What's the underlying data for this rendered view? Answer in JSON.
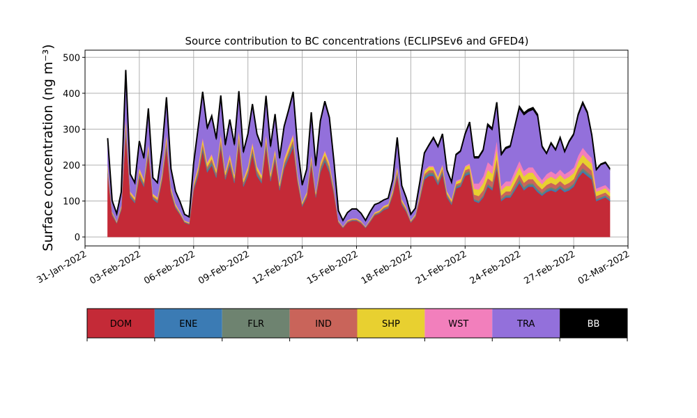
{
  "chart_data": {
    "type": "area",
    "stacked": true,
    "title": "Source contribution to BC concentrations (ECLIPSEv6 and GFED4)",
    "xlabel": "",
    "ylabel": "Surface concentration (ng m⁻³)",
    "ylim": [
      -25,
      520
    ],
    "yticks": [
      0,
      100,
      200,
      300,
      400,
      500
    ],
    "xlim": [
      "2022-01-31",
      "2022-03-02"
    ],
    "xticks": [
      "31-Jan-2022",
      "03-Feb-2022",
      "06-Feb-2022",
      "09-Feb-2022",
      "12-Feb-2022",
      "15-Feb-2022",
      "18-Feb-2022",
      "21-Feb-2022",
      "24-Feb-2022",
      "27-Feb-2022",
      "02-Mar-2022"
    ],
    "grid": true,
    "legend_position": "bottom colorbar",
    "x": [
      "2022-02-01T06",
      "2022-02-01T12",
      "2022-02-01T18",
      "2022-02-02T00",
      "2022-02-02T06",
      "2022-02-02T12",
      "2022-02-02T18",
      "2022-02-03T00",
      "2022-02-03T06",
      "2022-02-03T12",
      "2022-02-03T18",
      "2022-02-04T00",
      "2022-02-04T06",
      "2022-02-04T12",
      "2022-02-04T18",
      "2022-02-05T00",
      "2022-02-05T06",
      "2022-02-05T12",
      "2022-02-05T18",
      "2022-02-06T00",
      "2022-02-06T06",
      "2022-02-06T12",
      "2022-02-06T18",
      "2022-02-07T00",
      "2022-02-07T06",
      "2022-02-07T12",
      "2022-02-07T18",
      "2022-02-08T00",
      "2022-02-08T06",
      "2022-02-08T12",
      "2022-02-08T18",
      "2022-02-09T00",
      "2022-02-09T06",
      "2022-02-09T12",
      "2022-02-09T18",
      "2022-02-10T00",
      "2022-02-10T06",
      "2022-02-10T12",
      "2022-02-10T18",
      "2022-02-11T00",
      "2022-02-11T06",
      "2022-02-11T12",
      "2022-02-11T18",
      "2022-02-12T00",
      "2022-02-12T06",
      "2022-02-12T12",
      "2022-02-12T18",
      "2022-02-13T00",
      "2022-02-13T06",
      "2022-02-13T12",
      "2022-02-13T18",
      "2022-02-14T00",
      "2022-02-14T06",
      "2022-02-14T12",
      "2022-02-14T18",
      "2022-02-15T00",
      "2022-02-15T06",
      "2022-02-15T12",
      "2022-02-15T18",
      "2022-02-16T00",
      "2022-02-16T06",
      "2022-02-16T12",
      "2022-02-16T18",
      "2022-02-17T00",
      "2022-02-17T06",
      "2022-02-17T12",
      "2022-02-17T18",
      "2022-02-18T00",
      "2022-02-18T06",
      "2022-02-18T12",
      "2022-02-18T18",
      "2022-02-19T00",
      "2022-02-19T06",
      "2022-02-19T12",
      "2022-02-19T18",
      "2022-02-20T00",
      "2022-02-20T06",
      "2022-02-20T12",
      "2022-02-20T18",
      "2022-02-21T00",
      "2022-02-21T06",
      "2022-02-21T12",
      "2022-02-21T18",
      "2022-02-22T00",
      "2022-02-22T06",
      "2022-02-22T12",
      "2022-02-22T18",
      "2022-02-23T00",
      "2022-02-23T06",
      "2022-02-23T12",
      "2022-02-23T18",
      "2022-02-24T00",
      "2022-02-24T06",
      "2022-02-24T12",
      "2022-02-24T18",
      "2022-02-25T00",
      "2022-02-25T06",
      "2022-02-25T12",
      "2022-02-25T18",
      "2022-02-26T00",
      "2022-02-26T06",
      "2022-02-26T12",
      "2022-02-26T18",
      "2022-02-27T00",
      "2022-02-27T06",
      "2022-02-27T12",
      "2022-02-27T18",
      "2022-02-28T00",
      "2022-02-28T06",
      "2022-02-28T12",
      "2022-02-28T18",
      "2022-03-01T00"
    ],
    "series": [
      {
        "name": "DOM",
        "color": "#c42a37",
        "values": [
          175,
          60,
          38,
          75,
          290,
          110,
          95,
          165,
          140,
          230,
          105,
          95,
          155,
          250,
          120,
          80,
          62,
          40,
          35,
          130,
          170,
          240,
          180,
          200,
          165,
          250,
          160,
          200,
          150,
          260,
          140,
          170,
          230,
          170,
          150,
          250,
          155,
          215,
          130,
          190,
          220,
          250,
          150,
          85,
          110,
          200,
          110,
          180,
          210,
          180,
          120,
          40,
          25,
          40,
          45,
          45,
          38,
          25,
          42,
          60,
          65,
          75,
          80,
          115,
          170,
          90,
          70,
          40,
          55,
          105,
          160,
          170,
          170,
          145,
          175,
          110,
          90,
          135,
          140,
          170,
          175,
          100,
          95,
          110,
          140,
          130,
          190,
          100,
          110,
          110,
          130,
          150,
          130,
          140,
          140,
          125,
          115,
          125,
          130,
          125,
          135,
          125,
          130,
          140,
          165,
          180,
          170,
          160,
          100,
          105,
          110,
          100
        ]
      },
      {
        "name": "ENE",
        "color": "#3b7bb4",
        "values": [
          4,
          2,
          1,
          2,
          6,
          3,
          2,
          4,
          3,
          5,
          2,
          2,
          3,
          5,
          3,
          2,
          1,
          1,
          1,
          3,
          4,
          5,
          4,
          4,
          3,
          5,
          3,
          4,
          3,
          5,
          3,
          4,
          5,
          4,
          3,
          5,
          3,
          4,
          3,
          4,
          5,
          5,
          3,
          2,
          2,
          4,
          2,
          4,
          4,
          4,
          3,
          1,
          1,
          1,
          1,
          1,
          1,
          1,
          1,
          1,
          1,
          2,
          2,
          2,
          4,
          2,
          2,
          1,
          1,
          2,
          4,
          4,
          4,
          3,
          4,
          3,
          2,
          3,
          3,
          4,
          4,
          3,
          3,
          3,
          4,
          4,
          5,
          3,
          3,
          3,
          4,
          5,
          4,
          4,
          4,
          4,
          3,
          4,
          4,
          4,
          4,
          4,
          4,
          4,
          5,
          5,
          5,
          5,
          3,
          3,
          3,
          3
        ]
      },
      {
        "name": "FLR",
        "color": "#6e8370",
        "values": [
          5,
          2,
          1,
          2,
          8,
          3,
          3,
          5,
          4,
          6,
          3,
          3,
          4,
          7,
          3,
          2,
          2,
          1,
          1,
          4,
          5,
          7,
          5,
          6,
          5,
          7,
          4,
          6,
          4,
          7,
          4,
          5,
          6,
          5,
          4,
          7,
          4,
          6,
          4,
          5,
          6,
          7,
          4,
          2,
          3,
          6,
          3,
          5,
          6,
          5,
          3,
          1,
          1,
          1,
          1,
          1,
          1,
          1,
          1,
          2,
          2,
          2,
          2,
          3,
          5,
          3,
          2,
          1,
          2,
          3,
          5,
          5,
          5,
          4,
          5,
          3,
          3,
          4,
          4,
          5,
          5,
          3,
          3,
          3,
          4,
          4,
          6,
          3,
          4,
          4,
          5,
          6,
          5,
          5,
          5,
          5,
          5,
          5,
          5,
          5,
          5,
          5,
          5,
          5,
          6,
          7,
          6,
          6,
          3,
          3,
          3,
          3
        ]
      },
      {
        "name": "IND",
        "color": "#c9645a",
        "values": [
          6,
          3,
          1,
          3,
          12,
          4,
          4,
          7,
          5,
          8,
          4,
          4,
          6,
          10,
          5,
          3,
          2,
          1,
          1,
          5,
          7,
          9,
          7,
          8,
          6,
          10,
          6,
          8,
          6,
          10,
          6,
          7,
          9,
          7,
          6,
          9,
          6,
          8,
          5,
          7,
          8,
          9,
          6,
          3,
          4,
          8,
          4,
          7,
          8,
          7,
          5,
          2,
          1,
          2,
          2,
          2,
          2,
          1,
          2,
          2,
          2,
          3,
          3,
          4,
          7,
          4,
          3,
          2,
          2,
          4,
          6,
          7,
          7,
          6,
          7,
          4,
          4,
          5,
          5,
          7,
          7,
          12,
          13,
          14,
          16,
          16,
          18,
          10,
          10,
          10,
          12,
          14,
          12,
          12,
          12,
          11,
          10,
          11,
          12,
          11,
          12,
          11,
          12,
          12,
          14,
          16,
          15,
          14,
          8,
          8,
          8,
          7
        ]
      },
      {
        "name": "SHP",
        "color": "#e8d030",
        "values": [
          8,
          3,
          2,
          4,
          15,
          5,
          5,
          9,
          7,
          10,
          5,
          5,
          8,
          12,
          6,
          4,
          3,
          2,
          2,
          7,
          9,
          12,
          9,
          10,
          8,
          12,
          8,
          10,
          8,
          14,
          7,
          9,
          11,
          9,
          8,
          12,
          8,
          10,
          7,
          9,
          11,
          12,
          7,
          4,
          5,
          10,
          5,
          9,
          10,
          9,
          6,
          2,
          1,
          2,
          2,
          2,
          2,
          1,
          2,
          3,
          3,
          4,
          4,
          6,
          9,
          5,
          4,
          2,
          3,
          5,
          8,
          9,
          9,
          8,
          9,
          6,
          5,
          7,
          7,
          9,
          10,
          16,
          18,
          20,
          23,
          22,
          26,
          14,
          15,
          15,
          18,
          20,
          18,
          18,
          18,
          16,
          14,
          16,
          17,
          16,
          17,
          16,
          17,
          17,
          20,
          22,
          20,
          19,
          12,
          12,
          12,
          11
        ]
      },
      {
        "name": "WST",
        "color": "#f27fbc",
        "values": [
          3,
          1,
          1,
          2,
          6,
          2,
          2,
          3,
          3,
          4,
          2,
          2,
          3,
          5,
          2,
          2,
          1,
          1,
          1,
          3,
          4,
          5,
          4,
          4,
          3,
          5,
          3,
          4,
          3,
          5,
          3,
          3,
          4,
          3,
          3,
          5,
          3,
          4,
          3,
          4,
          4,
          5,
          3,
          2,
          2,
          4,
          2,
          3,
          4,
          3,
          2,
          1,
          1,
          1,
          1,
          1,
          1,
          1,
          1,
          1,
          1,
          1,
          1,
          2,
          3,
          2,
          2,
          1,
          1,
          2,
          3,
          3,
          3,
          3,
          3,
          2,
          2,
          3,
          3,
          3,
          4,
          15,
          17,
          19,
          22,
          21,
          25,
          12,
          13,
          13,
          15,
          17,
          15,
          15,
          15,
          14,
          12,
          14,
          15,
          14,
          15,
          14,
          15,
          15,
          17,
          19,
          17,
          16,
          9,
          9,
          9,
          8
        ]
      },
      {
        "name": "TRA",
        "color": "#9370db",
        "values": [
          70,
          28,
          20,
          35,
          120,
          45,
          38,
          70,
          55,
          90,
          42,
          38,
          60,
          95,
          48,
          32,
          25,
          16,
          14,
          50,
          100,
          120,
          90,
          100,
          80,
          100,
          70,
          90,
          80,
          100,
          70,
          85,
          100,
          85,
          75,
          100,
          70,
          90,
          65,
          85,
          95,
          110,
          70,
          45,
          60,
          110,
          70,
          110,
          130,
          120,
          70,
          25,
          15,
          20,
          25,
          25,
          20,
          15,
          20,
          20,
          20,
          15,
          15,
          25,
          75,
          35,
          25,
          15,
          15,
          30,
          45,
          55,
          75,
          80,
          80,
          55,
          45,
          70,
          75,
          85,
          110,
          70,
          70,
          70,
          100,
          100,
          100,
          85,
          90,
          95,
          120,
          145,
          155,
          155,
          160,
          160,
          90,
          55,
          75,
          65,
          85,
          60,
          80,
          90,
          110,
          120,
          110,
          60,
          50,
          60,
          60,
          55
        ]
      },
      {
        "name": "BB",
        "color": "#000000",
        "values": [
          4,
          2,
          1,
          2,
          8,
          3,
          2,
          4,
          3,
          5,
          2,
          2,
          3,
          5,
          3,
          2,
          2,
          1,
          1,
          3,
          5,
          6,
          5,
          5,
          4,
          5,
          3,
          5,
          4,
          5,
          4,
          4,
          5,
          4,
          4,
          5,
          4,
          5,
          3,
          4,
          5,
          6,
          4,
          2,
          3,
          5,
          3,
          5,
          6,
          5,
          3,
          1,
          1,
          1,
          1,
          1,
          1,
          1,
          1,
          1,
          1,
          1,
          1,
          2,
          4,
          2,
          1,
          1,
          1,
          2,
          3,
          3,
          4,
          3,
          4,
          3,
          2,
          3,
          3,
          4,
          5,
          4,
          4,
          4,
          5,
          5,
          5,
          4,
          4,
          4,
          5,
          6,
          6,
          6,
          6,
          6,
          4,
          3,
          4,
          3,
          4,
          3,
          4,
          4,
          5,
          6,
          5,
          4,
          3,
          3,
          3,
          3
        ]
      }
    ]
  }
}
